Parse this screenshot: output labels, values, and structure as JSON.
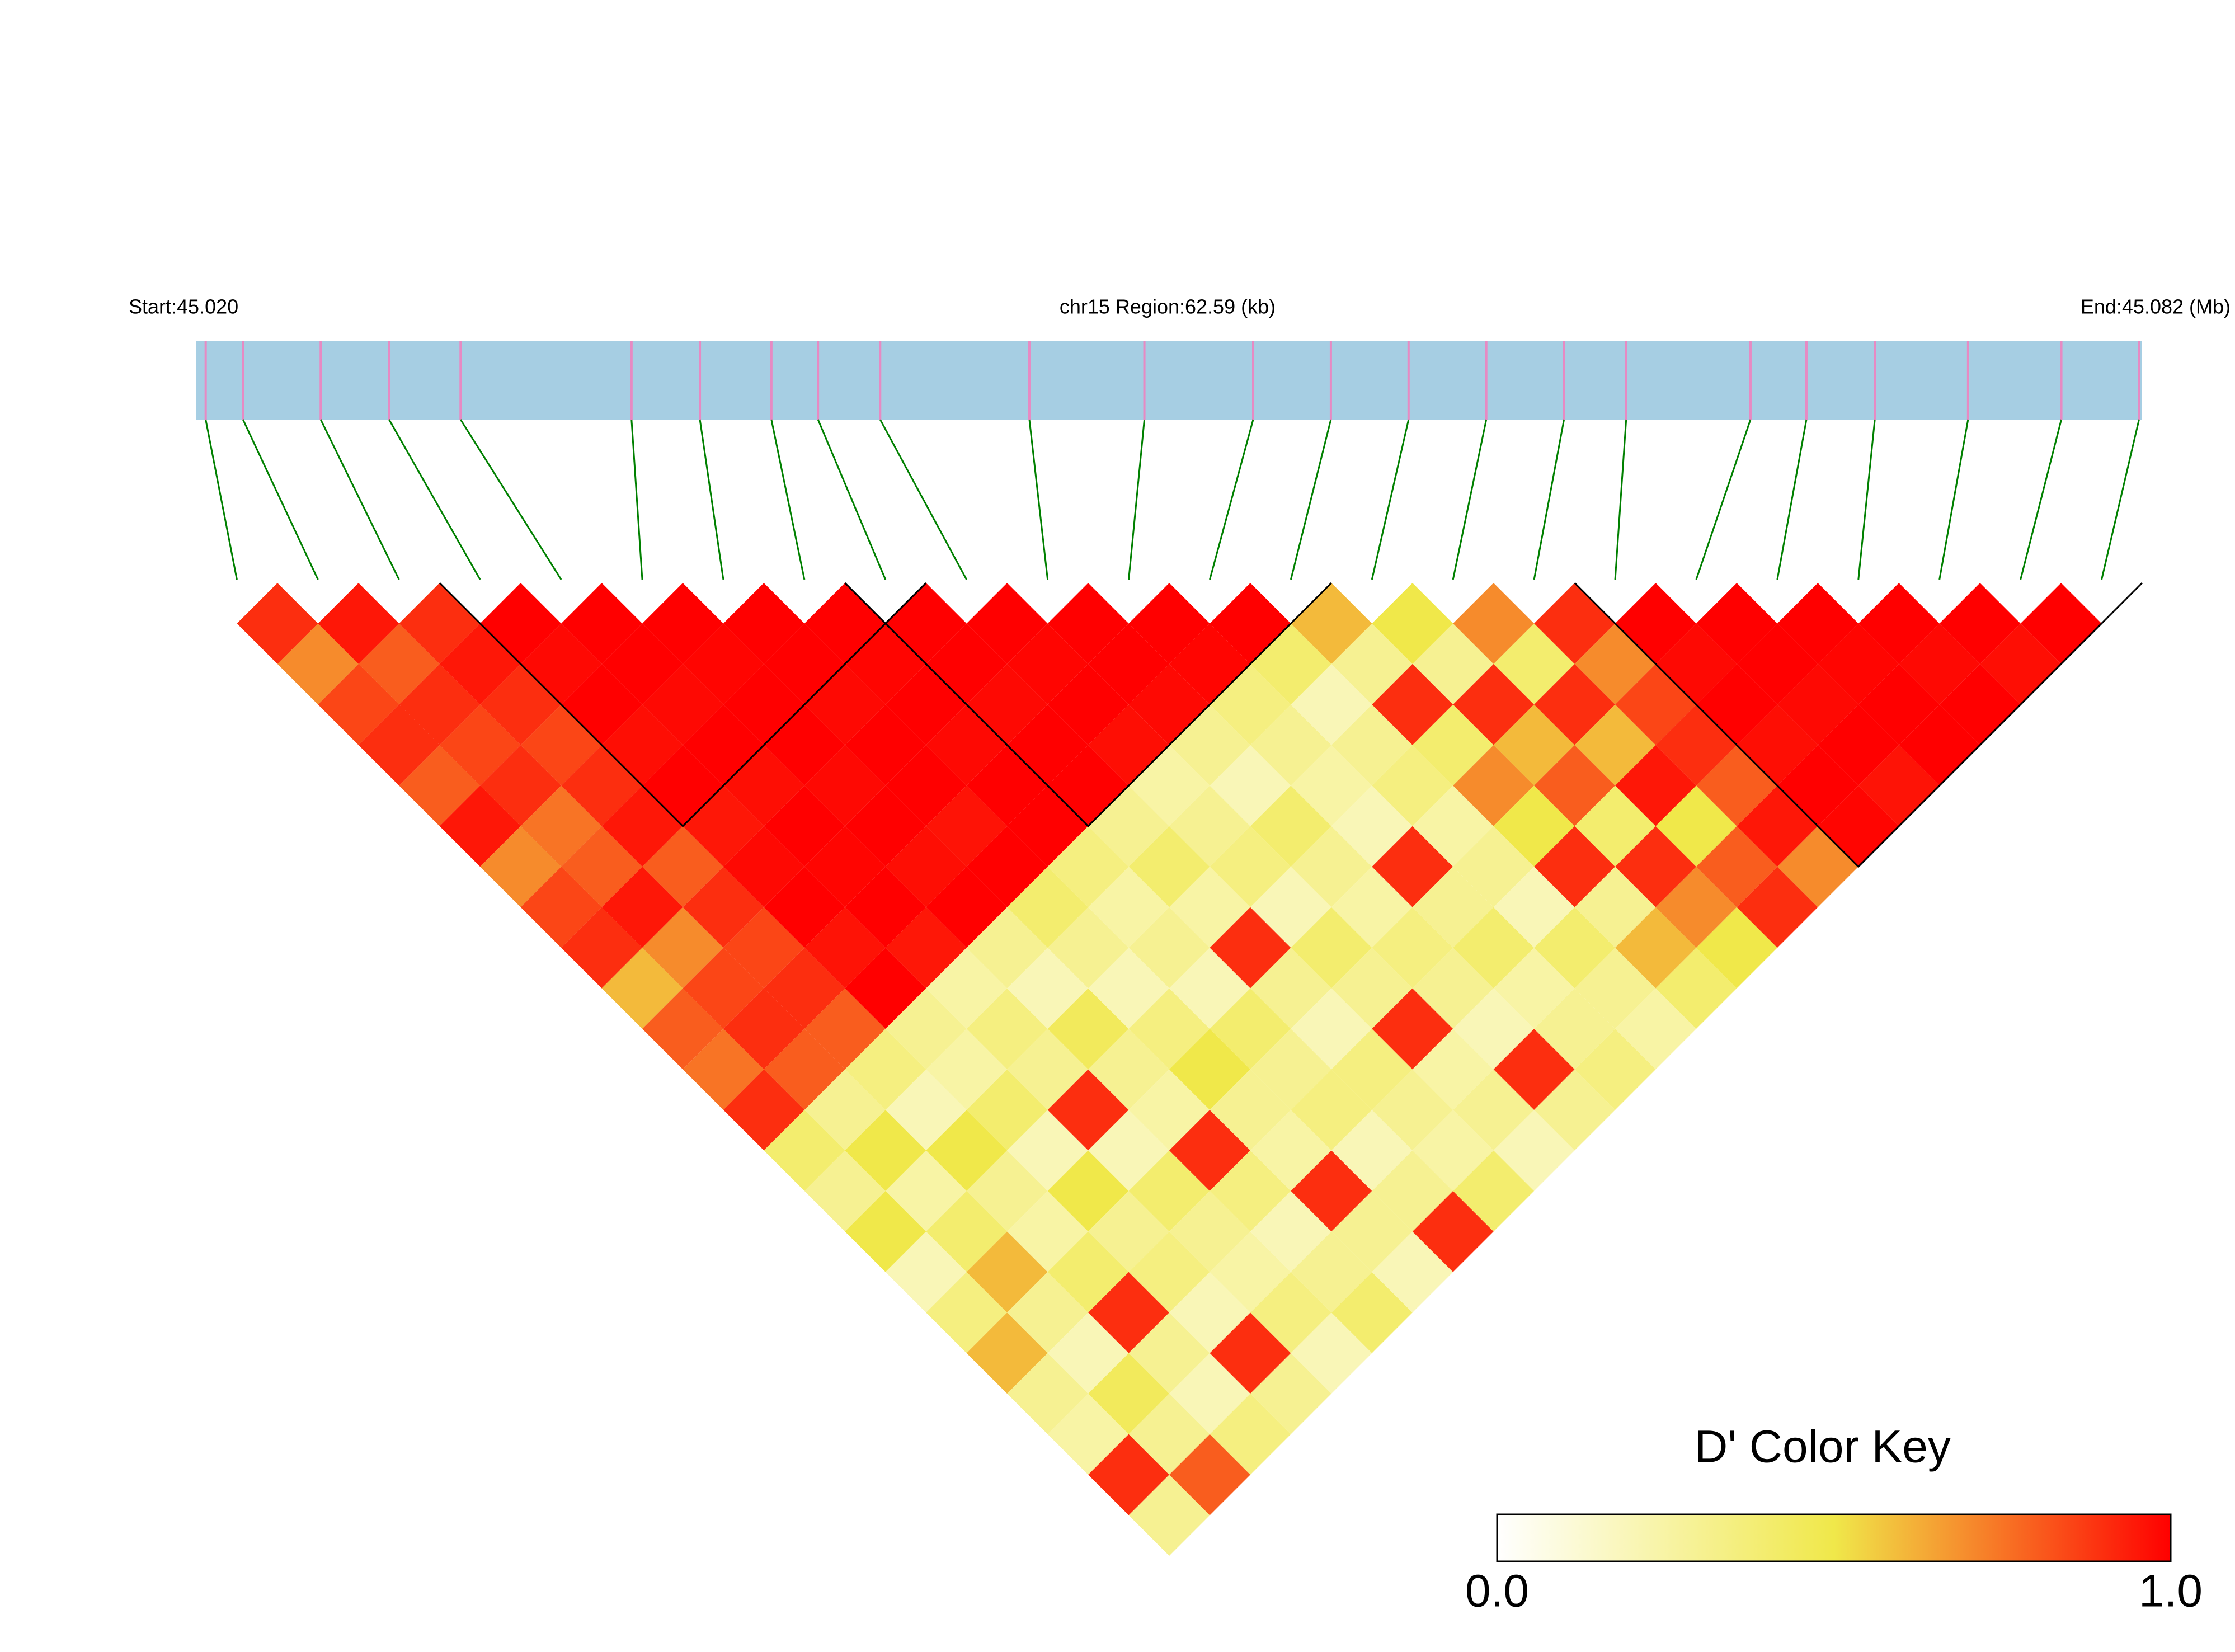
{
  "chart_data": {
    "type": "ld_heatmap",
    "start_label": "Start:45.020",
    "region_label": "chr15 Region:62.59 (kb)",
    "end_label": "End:45.082 (Mb)",
    "xlim": [
      45.02,
      45.0826
    ],
    "snp_positions": [
      45.0203,
      45.0215,
      45.024,
      45.0262,
      45.0285,
      45.034,
      45.0362,
      45.0385,
      45.04,
      45.042,
      45.0468,
      45.0505,
      45.054,
      45.0565,
      45.059,
      45.0615,
      45.064,
      45.066,
      45.07,
      45.0718,
      45.074,
      45.077,
      45.08,
      45.0825
    ],
    "ld": [
      [
        0.9,
        0.7,
        0.85,
        0.9,
        0.8,
        0.95,
        0.7,
        0.85,
        0.9,
        0.6,
        0.8,
        0.75,
        0.9,
        0.4,
        0.3,
        0.5,
        0.2,
        0.35,
        0.6,
        0.3,
        0.25,
        0.9,
        0.3
      ],
      [
        0.95,
        0.8,
        0.9,
        0.85,
        0.9,
        0.75,
        0.8,
        0.95,
        0.7,
        0.85,
        0.9,
        0.8,
        0.3,
        0.5,
        0.25,
        0.4,
        0.6,
        0.3,
        0.2,
        0.45,
        0.3,
        0.8
      ],
      [
        0.9,
        0.95,
        0.9,
        0.85,
        0.9,
        0.95,
        0.8,
        0.9,
        0.85,
        0.9,
        0.8,
        0.35,
        0.2,
        0.5,
        0.3,
        0.25,
        0.4,
        0.9,
        0.3,
        0.2,
        0.35
      ],
      [
        1,
        0.98,
        1,
        0.97,
        1,
        0.95,
        0.98,
        1,
        0.96,
        1,
        0.3,
        0.25,
        0.4,
        0.2,
        0.5,
        0.3,
        0.35,
        0.2,
        0.9,
        0.3
      ],
      [
        1,
        1,
        0.98,
        1,
        0.97,
        1,
        0.99,
        1,
        0.95,
        0.25,
        0.35,
        0.3,
        0.9,
        0.2,
        0.4,
        0.3,
        0.25,
        0.35,
        0.2
      ],
      [
        1,
        0.99,
        1,
        1,
        0.98,
        1,
        0.97,
        1,
        0.3,
        0.2,
        0.45,
        0.3,
        0.25,
        0.9,
        0.35,
        0.2,
        0.3,
        0.4
      ],
      [
        1,
        1,
        0.98,
        1,
        1,
        0.96,
        1,
        0.4,
        0.3,
        0.2,
        0.35,
        0.5,
        0.3,
        0.25,
        0.9,
        0.3,
        0.2
      ],
      [
        1,
        0.99,
        1,
        0.98,
        1,
        1,
        0.35,
        0.25,
        0.3,
        0.2,
        0.4,
        0.3,
        0.35,
        0.2,
        0.3,
        0.9
      ],
      [
        1,
        1,
        0.98,
        1,
        1,
        0.3,
        0.4,
        0.25,
        0.9,
        0.3,
        0.2,
        0.35,
        0.3,
        0.25,
        0.4
      ],
      [
        1,
        0.99,
        1,
        0.97,
        0.25,
        0.3,
        0.35,
        0.2,
        0.4,
        0.3,
        0.9,
        0.25,
        0.3,
        0.2
      ],
      [
        1,
        1,
        0.98,
        0.3,
        0.2,
        0.4,
        0.3,
        0.25,
        0.35,
        0.3,
        0.2,
        0.9,
        0.3
      ],
      [
        1,
        0.99,
        0.35,
        0.3,
        0.25,
        0.2,
        0.9,
        0.3,
        0.4,
        0.25,
        0.3,
        0.35
      ],
      [
        1,
        0.4,
        0.2,
        0.3,
        0.35,
        0.25,
        0.3,
        0.2,
        0.4,
        0.3,
        0.25
      ],
      [
        0.6,
        0.3,
        0.9,
        0.4,
        0.7,
        0.5,
        0.9,
        0.3,
        0.6,
        0.4
      ],
      [
        0.5,
        0.3,
        0.9,
        0.6,
        0.8,
        0.4,
        0.9,
        0.7,
        0.5
      ],
      [
        0.7,
        0.4,
        0.9,
        0.6,
        0.95,
        0.5,
        0.8,
        0.9
      ],
      [
        0.9,
        0.7,
        0.85,
        0.9,
        0.8,
        0.95,
        0.7
      ],
      [
        1,
        0.98,
        1,
        0.97,
        1,
        0.99
      ],
      [
        1,
        1,
        0.98,
        1,
        0.96
      ],
      [
        1,
        0.99,
        1,
        1
      ],
      [
        1,
        0.98,
        1
      ],
      [
        1,
        0.97
      ],
      [
        1
      ]
    ],
    "blocks": [
      [
        3,
        8
      ],
      [
        8,
        13
      ],
      [
        17,
        23
      ]
    ],
    "colors": [
      "#ffffff",
      "#f0e84a",
      "#ff0000"
    ],
    "bar_color": "#a6cee3",
    "snp_color": "#e78ac3",
    "link_color": "#008000",
    "key_title": "D' Color Key",
    "key_lim": [
      0,
      1
    ],
    "key_ticks": [
      {
        "value": 0,
        "label": "0.0"
      },
      {
        "value": 1,
        "label": "1.0"
      }
    ]
  }
}
